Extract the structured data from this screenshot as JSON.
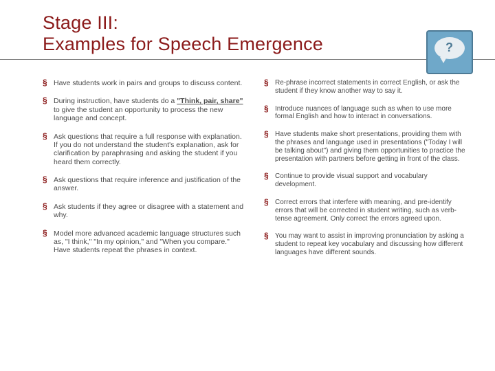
{
  "title_line1": "Stage III:",
  "title_line2": "Examples for Speech Emergence",
  "colors": {
    "title": "#8b1a1a",
    "bullet_marker": "#8b1a1a",
    "body_text": "#4a4a4a",
    "rule": "#777777",
    "icon_bg": "#6fa8c9",
    "icon_border": "#4d7a95",
    "bubble": "#e8eef2"
  },
  "left": [
    {
      "text": "Have students work in pairs and groups to discuss content."
    },
    {
      "pre": "During instruction, have students do a ",
      "em": "\"Think, pair, share\"",
      "post": " to give the student an opportunity to process the new language and concept."
    },
    {
      "text": "Ask questions that require a full response with explanation. If you do not understand the student's explanation, ask for clarification by paraphrasing and asking the student if you heard them correctly."
    },
    {
      "text": "Ask questions that require inference and justification of the answer."
    },
    {
      "text": "Ask students if they agree or disagree with a statement and why."
    },
    {
      "text": "Model more advanced academic language structures such as, \"I think,\" \"In my opinion,\" and \"When you compare.\" Have students repeat the phrases in context."
    }
  ],
  "right": [
    {
      "text": "Re-phrase incorrect statements in correct English, or ask the student if they know another way to say it."
    },
    {
      "text": "Introduce nuances of language such as when to use more formal English and how to interact in conversations."
    },
    {
      "text": "Have students make short presentations, providing them with the phrases and language used in presentations (\"Today I will be talking about\") and giving them opportunities to practice the presentation with partners before getting in front of the class."
    },
    {
      "text": "Continue to provide visual support and vocabulary development."
    },
    {
      "text": "Correct errors that interfere with meaning, and pre-identify errors that will be corrected in student writing, such as verb-tense agreement. Only correct the errors agreed upon."
    },
    {
      "text": "You may want to assist in improving pronunciation by asking a student to repeat key vocabulary and discussing how different languages have different sounds."
    }
  ]
}
